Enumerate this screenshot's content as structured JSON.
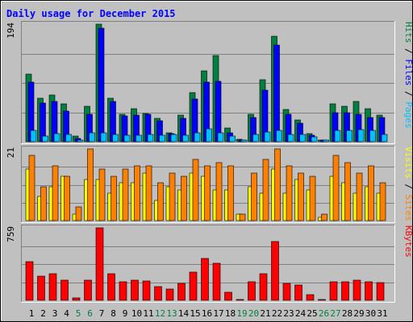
{
  "chart_data": [
    {
      "type": "bar",
      "title": "Daily usage for December 2015",
      "panel": "pages-files-hits",
      "ylabel_parts": [
        {
          "text": "Pages",
          "color": "#00c0ff"
        },
        {
          "text": " / ",
          "color": "#000000"
        },
        {
          "text": "Files",
          "color": "#0000ff"
        },
        {
          "text": " / ",
          "color": "#000000"
        },
        {
          "text": "Hits",
          "color": "#008040"
        }
      ],
      "ymax_label": "194",
      "ylim": [
        0,
        194
      ],
      "categories": [
        "1",
        "2",
        "3",
        "4",
        "5",
        "6",
        "7",
        "8",
        "9",
        "10",
        "11",
        "12",
        "13",
        "14",
        "15",
        "16",
        "17",
        "18",
        "19",
        "20",
        "21",
        "22",
        "23",
        "24",
        "25",
        "26",
        "27",
        "28",
        "29",
        "30",
        "31"
      ],
      "series": [
        {
          "name": "Hits",
          "color": "#008040",
          "values": [
            112,
            72,
            77,
            62,
            9,
            58,
            194,
            72,
            45,
            54,
            47,
            39,
            15,
            44,
            81,
            117,
            142,
            22,
            4,
            45,
            102,
            174,
            53,
            36,
            13,
            3,
            62,
            58,
            67,
            54,
            44
          ]
        },
        {
          "name": "Files",
          "color": "#0000ff",
          "values": [
            98,
            64,
            67,
            50,
            5,
            45,
            188,
            66,
            42,
            44,
            45,
            35,
            13,
            39,
            71,
            98,
            100,
            14,
            2,
            40,
            85,
            160,
            45,
            30,
            11,
            2,
            48,
            48,
            45,
            40,
            40
          ]
        },
        {
          "name": "Pages",
          "color": "#00c0ff",
          "values": [
            18,
            9,
            13,
            12,
            3,
            14,
            14,
            12,
            10,
            10,
            12,
            10,
            12,
            10,
            14,
            21,
            15,
            9,
            2,
            12,
            16,
            18,
            12,
            12,
            8,
            2,
            18,
            18,
            20,
            19,
            12
          ]
        }
      ],
      "grid": true
    },
    {
      "type": "bar",
      "panel": "sites-visits",
      "ylabel_parts": [
        {
          "text": "Sites",
          "color": "#ff8000"
        },
        {
          "text": " / ",
          "color": "#000000"
        },
        {
          "text": "Visits",
          "color": "#ffff00"
        }
      ],
      "ymax_label": "21",
      "ylim": [
        0,
        21
      ],
      "categories": [
        "1",
        "2",
        "3",
        "4",
        "5",
        "6",
        "7",
        "8",
        "9",
        "10",
        "11",
        "12",
        "13",
        "14",
        "15",
        "16",
        "17",
        "18",
        "19",
        "20",
        "21",
        "22",
        "23",
        "24",
        "25",
        "26",
        "27",
        "28",
        "29",
        "30",
        "31"
      ],
      "series": [
        {
          "name": "Visits",
          "color": "#ffff00",
          "values": [
            15,
            7,
            10,
            13,
            2,
            12,
            12,
            8,
            11,
            11,
            14,
            6,
            10,
            9,
            14,
            13,
            9,
            9,
            2,
            10,
            8,
            15,
            8,
            12,
            9,
            1,
            13,
            11,
            8,
            10,
            8
          ]
        },
        {
          "name": "Sites",
          "color": "#ff8000",
          "values": [
            19,
            10,
            16,
            13,
            4,
            21,
            15,
            13,
            15,
            16,
            16,
            11,
            14,
            13,
            18,
            16,
            17,
            16,
            2,
            14,
            18,
            21,
            16,
            14,
            13,
            2,
            19,
            17,
            14,
            16,
            11
          ]
        }
      ],
      "grid": true
    },
    {
      "type": "bar",
      "panel": "kbytes",
      "ylabel_parts": [
        {
          "text": "KBytes",
          "color": "#ff0000"
        }
      ],
      "ymax_label": "759",
      "ylim": [
        0,
        759
      ],
      "categories": [
        "1",
        "2",
        "3",
        "4",
        "5",
        "6",
        "7",
        "8",
        "9",
        "10",
        "11",
        "12",
        "13",
        "14",
        "15",
        "16",
        "17",
        "18",
        "19",
        "20",
        "21",
        "22",
        "23",
        "24",
        "25",
        "26",
        "27",
        "28",
        "29",
        "30",
        "31"
      ],
      "series": [
        {
          "name": "KBytes",
          "color": "#ff0000",
          "values": [
            404,
            255,
            276,
            207,
            28,
            208,
            759,
            280,
            197,
            214,
            202,
            146,
            117,
            180,
            296,
            436,
            389,
            86,
            10,
            198,
            282,
            619,
            181,
            164,
            59,
            4,
            193,
            193,
            212,
            197,
            184
          ]
        }
      ],
      "grid": true
    }
  ],
  "x_day_labels": [
    {
      "text": "1",
      "color": "#000000"
    },
    {
      "text": "2",
      "color": "#000000"
    },
    {
      "text": "3",
      "color": "#000000"
    },
    {
      "text": "4",
      "color": "#000000"
    },
    {
      "text": "5",
      "color": "#008040"
    },
    {
      "text": "6",
      "color": "#008040"
    },
    {
      "text": "7",
      "color": "#000000"
    },
    {
      "text": "8",
      "color": "#000000"
    },
    {
      "text": "9",
      "color": "#000000"
    },
    {
      "text": "10",
      "color": "#000000"
    },
    {
      "text": "11",
      "color": "#000000"
    },
    {
      "text": "12",
      "color": "#008040"
    },
    {
      "text": "13",
      "color": "#008040"
    },
    {
      "text": "14",
      "color": "#000000"
    },
    {
      "text": "15",
      "color": "#000000"
    },
    {
      "text": "16",
      "color": "#000000"
    },
    {
      "text": "17",
      "color": "#000000"
    },
    {
      "text": "18",
      "color": "#000000"
    },
    {
      "text": "19",
      "color": "#008040"
    },
    {
      "text": "20",
      "color": "#008040"
    },
    {
      "text": "21",
      "color": "#000000"
    },
    {
      "text": "22",
      "color": "#000000"
    },
    {
      "text": "23",
      "color": "#000000"
    },
    {
      "text": "24",
      "color": "#000000"
    },
    {
      "text": "25",
      "color": "#000000"
    },
    {
      "text": "26",
      "color": "#008040"
    },
    {
      "text": "27",
      "color": "#008040"
    },
    {
      "text": "28",
      "color": "#000000"
    },
    {
      "text": "29",
      "color": "#000000"
    },
    {
      "text": "30",
      "color": "#000000"
    },
    {
      "text": "31",
      "color": "#000000"
    }
  ],
  "colors": {
    "background": "#c0c0c0",
    "panel_bg": "#c0c0c0",
    "grid": "#808080",
    "title": "#0000ff",
    "border_light": "#ffffff",
    "border_dark": "#808080"
  }
}
